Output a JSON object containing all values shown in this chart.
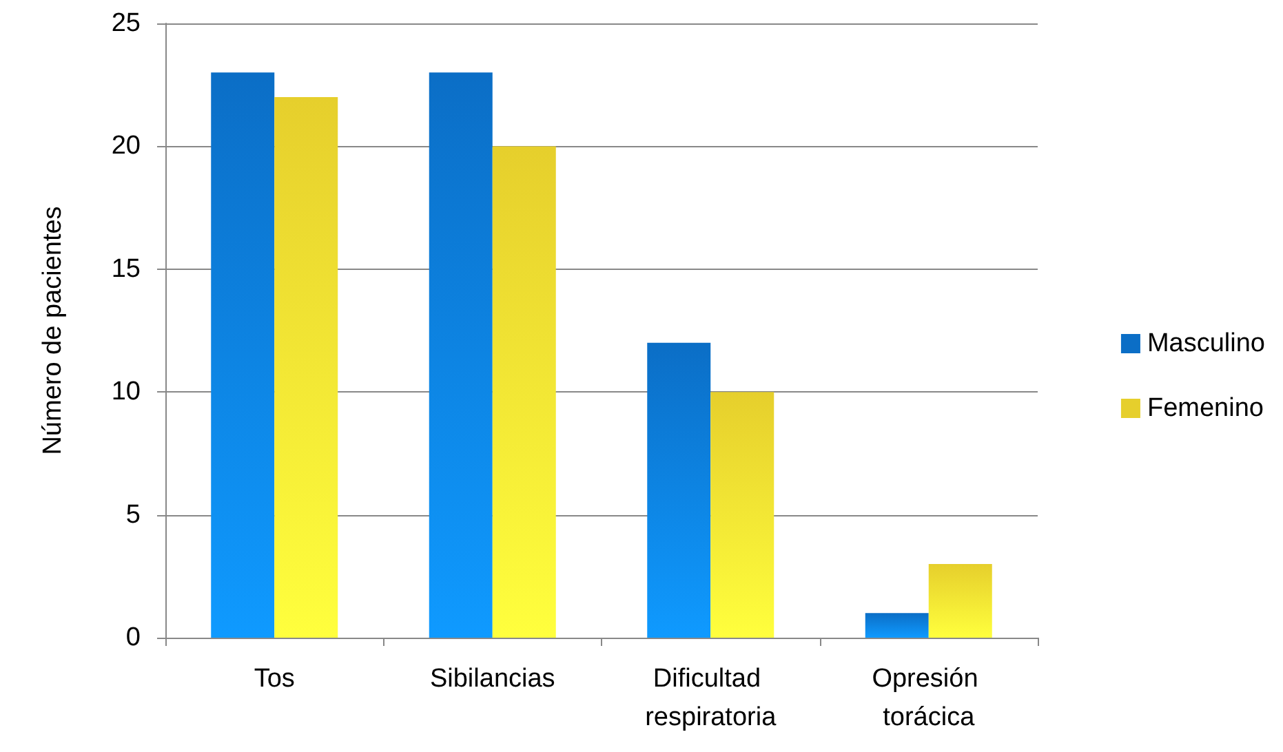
{
  "chart_data": {
    "type": "bar",
    "ylabel": "Número de pacientes",
    "categories": [
      "Tos",
      "Sibilancias",
      "Dificultad respiratoria",
      "Opresión torácica"
    ],
    "series": [
      {
        "name": "Masculino",
        "color": "#0b6ec6",
        "values": [
          23,
          23,
          12,
          1
        ]
      },
      {
        "name": "Femenino",
        "color": "#e6cf2c",
        "values": [
          22,
          20,
          10,
          3
        ]
      }
    ],
    "ylim": [
      0,
      25
    ],
    "yticks": [
      0,
      5,
      10,
      15,
      20,
      25
    ],
    "grid": "y",
    "legend": "right"
  }
}
